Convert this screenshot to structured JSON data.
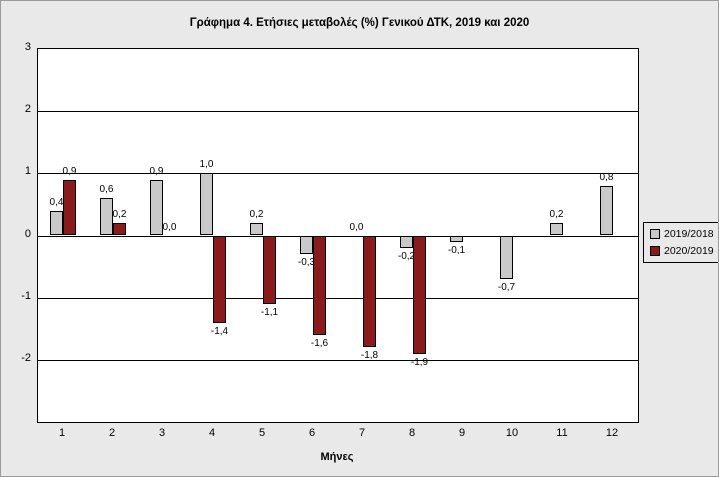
{
  "title": "Γράφημα 4. Ετήσιες μεταβολές (%) Γενικού ΔΤΚ, 2019 και 2020",
  "chart_data": {
    "type": "bar",
    "categories": [
      "1",
      "2",
      "3",
      "4",
      "5",
      "6",
      "7",
      "8",
      "9",
      "10",
      "11",
      "12"
    ],
    "xlabel": "Μήνες",
    "ylabel": "",
    "ylim": [
      -3,
      3
    ],
    "yticks": [
      3,
      2,
      1,
      0,
      -1,
      -2
    ],
    "ytick_labels": [
      "3",
      "2",
      "1",
      "0",
      "-1",
      "-2"
    ],
    "grid": true,
    "legend_position": "right",
    "series": [
      {
        "name": "2019/2018",
        "color": "#c9c9c9",
        "values": [
          0.4,
          0.6,
          0.9,
          1.0,
          0.2,
          -0.3,
          0.0,
          -0.2,
          -0.1,
          -0.7,
          0.2,
          0.8
        ],
        "labels": [
          "0,4",
          "0,6",
          "0,9",
          "1,0",
          "0,2",
          "-0,3",
          "0,0",
          "-0,2",
          "-0,1",
          "-0,7",
          "0,2",
          "0,8"
        ]
      },
      {
        "name": "2020/2019",
        "color": "#8b1a1a",
        "values": [
          0.9,
          0.2,
          0.0,
          -1.4,
          -1.1,
          -1.6,
          -1.8,
          -1.9,
          null,
          null,
          null,
          null
        ],
        "labels": [
          "0,9",
          "0,2",
          "0,0",
          "-1,4",
          "-1,1",
          "-1,6",
          "-1,8",
          "-1,9",
          null,
          null,
          null,
          null
        ]
      }
    ]
  }
}
